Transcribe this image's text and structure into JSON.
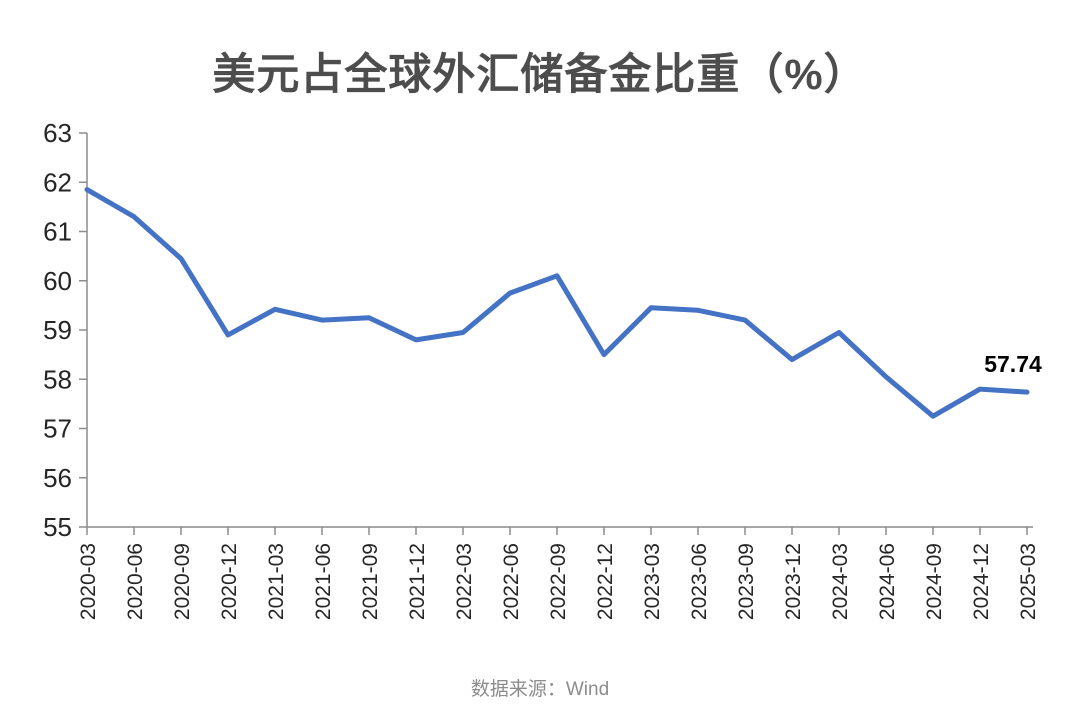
{
  "colors": {
    "background": "#ffffff",
    "line": "#4472C4",
    "title_text": "#4d4d4d",
    "axis": "#8c8c8c",
    "tick_label": "#262626",
    "end_label_text": "#000000",
    "source_text": "#8c8c8c"
  },
  "footer": {
    "source": "数据来源：Wind"
  },
  "chart_data": {
    "type": "line",
    "title": "美元占全球外汇储备金比重（%）",
    "categories": [
      "2020-03",
      "2020-06",
      "2020-09",
      "2020-12",
      "2021-03",
      "2021-06",
      "2021-09",
      "2021-12",
      "2022-03",
      "2022-06",
      "2022-09",
      "2022-12",
      "2023-03",
      "2023-06",
      "2023-09",
      "2023-12",
      "2024-03",
      "2024-06",
      "2024-09",
      "2024-12",
      "2025-03"
    ],
    "values": [
      61.85,
      61.3,
      60.45,
      58.9,
      59.42,
      59.2,
      59.25,
      58.8,
      58.95,
      59.75,
      60.1,
      58.5,
      59.45,
      59.4,
      59.2,
      58.4,
      58.95,
      58.05,
      57.25,
      57.8,
      57.74
    ],
    "xlabel": "",
    "ylabel": "",
    "ylim": [
      55,
      63
    ],
    "y_ticks": [
      55,
      56,
      57,
      58,
      59,
      60,
      61,
      62,
      63
    ],
    "grid": false,
    "legend": "none",
    "end_label": "57.74"
  }
}
